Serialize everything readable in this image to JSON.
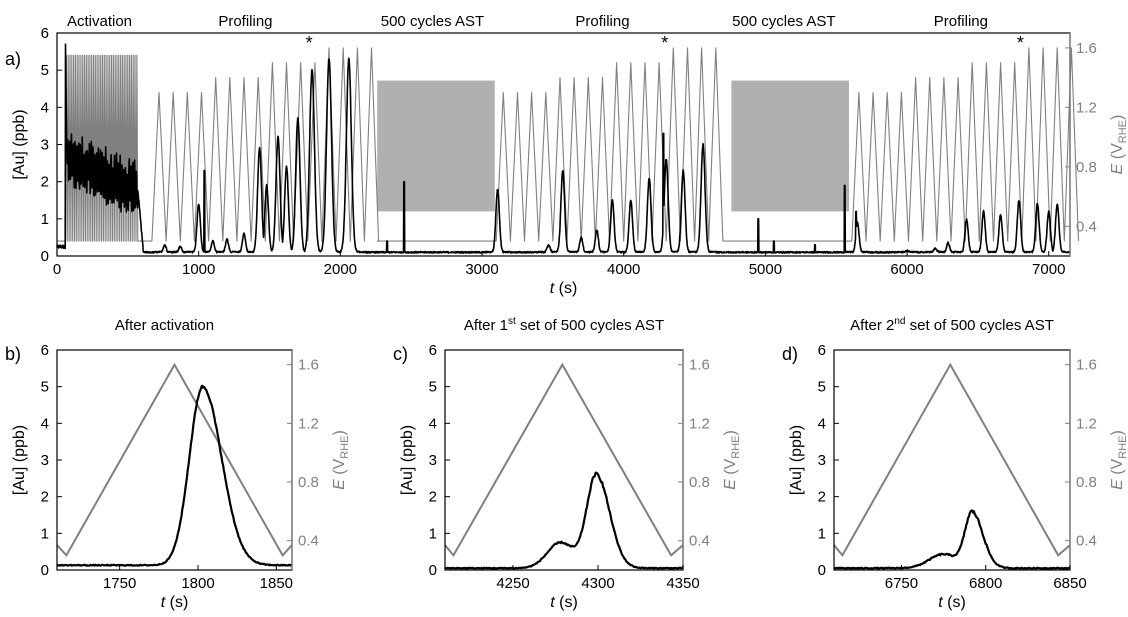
{
  "chart_data": [
    {
      "id": "a",
      "type": "line",
      "panel_label": "a)",
      "xlabel_var": "t",
      "xlabel_unit": " (s)",
      "ylabel": "[Au] (ppb)",
      "y2label_var": "E",
      "y2label_unit_open": " (V",
      "y2label_unit_sub": "RHE",
      "y2label_unit_close": ")",
      "xlim": [
        0,
        7150
      ],
      "ylim": [
        0,
        6
      ],
      "y2lim": [
        0.2,
        1.7
      ],
      "xticks": [
        0,
        1000,
        2000,
        3000,
        4000,
        5000,
        6000,
        7000
      ],
      "yticks": [
        0,
        1,
        2,
        3,
        4,
        5,
        6
      ],
      "y2ticks": [
        "0.4",
        "0.8",
        "1.2",
        "1.6"
      ],
      "y2tick_values": [
        0.4,
        0.8,
        1.2,
        1.6
      ],
      "phases": [
        {
          "label": "Activation",
          "x": 300
        },
        {
          "label": "Profiling",
          "x": 1330
        },
        {
          "label": "500 cycles AST",
          "x": 2650
        },
        {
          "label": "Profiling",
          "x": 3850
        },
        {
          "label": "500 cycles AST",
          "x": 5130
        },
        {
          "label": "Profiling",
          "x": 6380
        }
      ],
      "ast_blocks": [
        {
          "x": [
            2260,
            3090
          ],
          "y": [
            0.5,
            1.38
          ]
        },
        {
          "x": [
            4760,
            5590
          ],
          "y": [
            0.5,
            1.38
          ]
        }
      ],
      "star_markers": [
        {
          "label": "*",
          "x": 1780
        },
        {
          "label": "*",
          "x": 4290
        },
        {
          "label": "*",
          "x": 6800
        }
      ],
      "series": [
        {
          "quantity": "E",
          "axis": "right",
          "color": "#808080",
          "activation": {
            "x_start": 60,
            "x_end": 570,
            "n_cycles": 40,
            "E_min": 0.3,
            "E_max": 1.55
          },
          "profiling": [
            {
              "x_start": 570,
              "period": 100,
              "E_min": 0.3,
              "E_max": [
                0.3,
                1.3,
                1.3,
                1.3,
                1.3,
                1.4,
                1.4,
                1.4,
                1.4,
                1.5,
                1.5,
                1.5,
                1.5,
                1.6,
                1.6,
                1.6,
                1.6
              ]
            },
            {
              "x_start": 3100,
              "period": 100,
              "E_min": 0.3,
              "E_max": [
                1.3,
                1.3,
                1.3,
                1.3,
                1.4,
                1.4,
                1.4,
                1.4,
                1.5,
                1.5,
                1.5,
                1.5,
                1.6,
                1.6,
                1.6,
                1.6
              ]
            },
            {
              "x_start": 5610,
              "period": 100,
              "E_min": 0.3,
              "E_max": [
                1.3,
                1.3,
                1.3,
                1.3,
                1.4,
                1.4,
                1.4,
                1.4,
                1.5,
                1.5,
                1.5,
                1.5,
                1.6,
                1.6,
                1.6,
                1.6
              ]
            }
          ]
        },
        {
          "quantity": "[Au]",
          "axis": "left",
          "color": "#000000",
          "activation": {
            "x_start": 60,
            "x_end": 570,
            "initial_peak": 5.7,
            "mean_start": 2.6,
            "mean_end": 1.8,
            "oscillation": 0.55
          },
          "baseline": 0.1,
          "profiling_peaks": [
            {
              "x": 760,
              "y": 0.3
            },
            {
              "x": 870,
              "y": 0.25
            },
            {
              "x": 1000,
              "y": 1.4
            },
            {
              "x": 1100,
              "y": 0.4
            },
            {
              "x": 1200,
              "y": 0.45
            },
            {
              "x": 1320,
              "y": 0.6
            },
            {
              "x": 1430,
              "y": 2.9
            },
            {
              "x": 1480,
              "y": 1.9
            },
            {
              "x": 1560,
              "y": 3.2
            },
            {
              "x": 1620,
              "y": 2.4
            },
            {
              "x": 1700,
              "y": 3.7
            },
            {
              "x": 1800,
              "y": 5.0
            },
            {
              "x": 1920,
              "y": 5.3
            },
            {
              "x": 2060,
              "y": 5.3
            },
            {
              "x": 3110,
              "y": 1.8
            },
            {
              "x": 3470,
              "y": 0.3
            },
            {
              "x": 3570,
              "y": 2.3
            },
            {
              "x": 3700,
              "y": 0.5
            },
            {
              "x": 3810,
              "y": 0.7
            },
            {
              "x": 3920,
              "y": 1.5
            },
            {
              "x": 4050,
              "y": 1.5
            },
            {
              "x": 4180,
              "y": 2.1
            },
            {
              "x": 4300,
              "y": 2.6
            },
            {
              "x": 4420,
              "y": 2.3
            },
            {
              "x": 4560,
              "y": 3.0
            },
            {
              "x": 5650,
              "y": 0.9
            },
            {
              "x": 6000,
              "y": 0.15
            },
            {
              "x": 6200,
              "y": 0.2
            },
            {
              "x": 6290,
              "y": 0.35
            },
            {
              "x": 6420,
              "y": 1.0
            },
            {
              "x": 6540,
              "y": 1.2
            },
            {
              "x": 6660,
              "y": 1.1
            },
            {
              "x": 6790,
              "y": 1.5
            },
            {
              "x": 6920,
              "y": 1.4
            },
            {
              "x": 7000,
              "y": 1.2
            },
            {
              "x": 7060,
              "y": 1.4
            }
          ],
          "spikes": [
            {
              "x": 1040,
              "y": 2.3
            },
            {
              "x": 2330,
              "y": 0.4
            },
            {
              "x": 2450,
              "y": 2.0
            },
            {
              "x": 4280,
              "y": 3.3
            },
            {
              "x": 4950,
              "y": 1.0
            },
            {
              "x": 5060,
              "y": 0.4
            },
            {
              "x": 5350,
              "y": 0.3
            },
            {
              "x": 5560,
              "y": 1.9
            },
            {
              "x": 5640,
              "y": 1.2
            }
          ]
        }
      ]
    },
    {
      "id": "b",
      "type": "line",
      "panel_label": "b)",
      "title": "After activation",
      "xlabel_var": "t",
      "xlabel_unit": " (s)",
      "ylabel": "[Au] (ppb)",
      "y2label_var": "E",
      "y2label_unit_open": " (V",
      "y2label_unit_sub": "RHE",
      "y2label_unit_close": ")",
      "xlim": [
        1710,
        1860
      ],
      "ylim": [
        0,
        6
      ],
      "y2lim": [
        0.2,
        1.7
      ],
      "xticks": [
        1750,
        1800,
        1850
      ],
      "yticks": [
        0,
        1,
        2,
        3,
        4,
        5,
        6
      ],
      "y2ticks": [
        "0.4",
        "0.8",
        "1.2",
        "1.6"
      ],
      "y2tick_values": [
        0.4,
        0.8,
        1.2,
        1.6
      ],
      "series": [
        {
          "quantity": "E",
          "axis": "right",
          "color": "#808080",
          "x": [
            1710,
            1716,
            1785,
            1854,
            1860
          ],
          "y": [
            0.37,
            0.3,
            1.6,
            0.3,
            0.37
          ]
        },
        {
          "quantity": "[Au]",
          "axis": "left",
          "color": "#000000",
          "baseline": 0.13,
          "peak": {
            "x": 1803,
            "y": 5.0,
            "rise_width": 12,
            "fall_width": 17
          },
          "shoulder": null
        }
      ]
    },
    {
      "id": "c",
      "type": "line",
      "panel_label": "c)",
      "title_main": "After 1",
      "title_sup": "st",
      "title_rest": " set of 500 cycles AST",
      "xlabel_var": "t",
      "xlabel_unit": " (s)",
      "ylabel": "[Au] (ppb)",
      "y2label_var": "E",
      "y2label_unit_open": " (V",
      "y2label_unit_sub": "RHE",
      "y2label_unit_close": ")",
      "xlim": [
        4210,
        4350
      ],
      "ylim": [
        0,
        6
      ],
      "y2lim": [
        0.2,
        1.7
      ],
      "xticks": [
        4250,
        4300,
        4350
      ],
      "yticks": [
        0,
        1,
        2,
        3,
        4,
        5,
        6
      ],
      "y2ticks": [
        "0.4",
        "0.8",
        "1.2",
        "1.6"
      ],
      "y2tick_values": [
        0.4,
        0.8,
        1.2,
        1.6
      ],
      "series": [
        {
          "quantity": "E",
          "axis": "right",
          "color": "#808080",
          "x": [
            4210,
            4215,
            4279,
            4343,
            4350
          ],
          "y": [
            0.37,
            0.3,
            1.6,
            0.3,
            0.37
          ]
        },
        {
          "quantity": "[Au]",
          "axis": "left",
          "color": "#000000",
          "baseline": 0.05,
          "peak": {
            "x": 4299,
            "y": 2.6,
            "rise_width": 8,
            "fall_width": 11
          },
          "shoulder": {
            "x": 4278,
            "y": 0.7,
            "width": 11
          }
        }
      ]
    },
    {
      "id": "d",
      "type": "line",
      "panel_label": "d)",
      "title_main": "After 2",
      "title_sup": "nd",
      "title_rest": " set of 500 cycles AST",
      "xlabel_var": "t",
      "xlabel_unit": " (s)",
      "ylabel": "[Au] (ppb)",
      "y2label_var": "E",
      "y2label_unit_open": " (V",
      "y2label_unit_sub": "RHE",
      "y2label_unit_close": ")",
      "xlim": [
        6710,
        6850
      ],
      "ylim": [
        0,
        6
      ],
      "y2lim": [
        0.2,
        1.7
      ],
      "xticks": [
        6750,
        6800,
        6850
      ],
      "yticks": [
        0,
        1,
        2,
        3,
        4,
        5,
        6
      ],
      "y2ticks": [
        "0.4",
        "0.8",
        "1.2",
        "1.6"
      ],
      "y2tick_values": [
        0.4,
        0.8,
        1.2,
        1.6
      ],
      "series": [
        {
          "quantity": "E",
          "axis": "right",
          "color": "#808080",
          "x": [
            6710,
            6715,
            6779,
            6843,
            6850
          ],
          "y": [
            0.37,
            0.3,
            1.6,
            0.3,
            0.37
          ]
        },
        {
          "quantity": "[Au]",
          "axis": "left",
          "color": "#000000",
          "baseline": 0.05,
          "peak": {
            "x": 6792,
            "y": 1.55,
            "rise_width": 6,
            "fall_width": 9
          },
          "shoulder": {
            "x": 6775,
            "y": 0.38,
            "width": 12
          }
        }
      ]
    }
  ]
}
